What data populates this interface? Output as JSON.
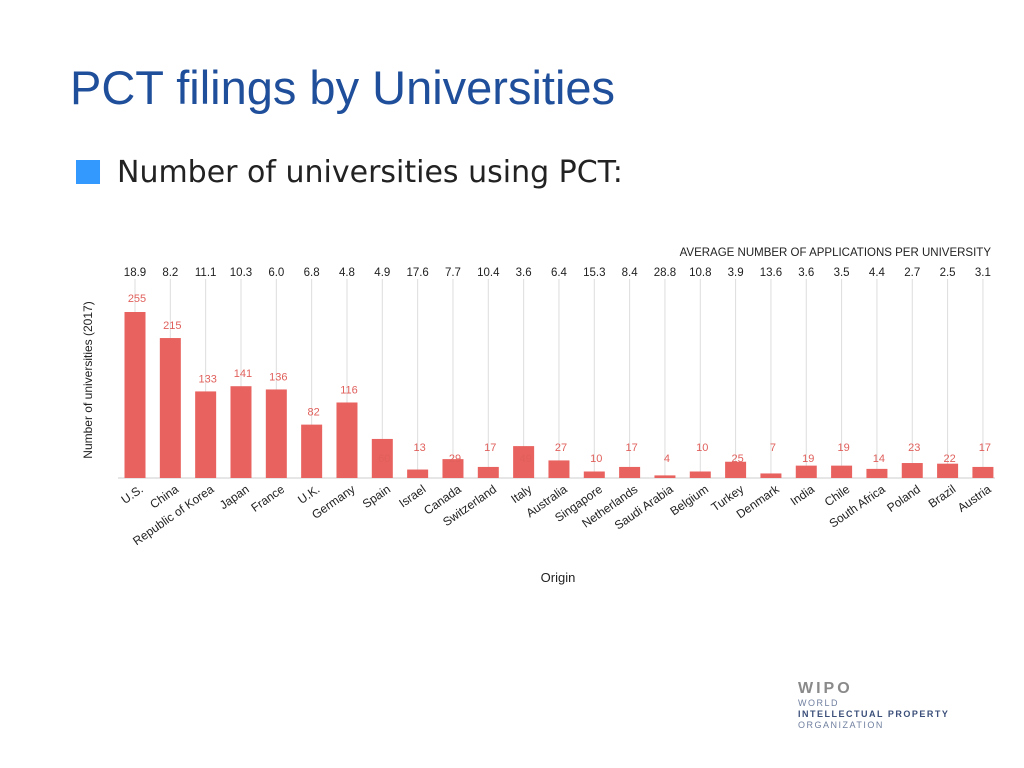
{
  "slide": {
    "title": "PCT filings by Universities",
    "bullet": "Number of universities using PCT:",
    "bullet_color": "#3399ff",
    "title_color": "#1f4e9a"
  },
  "logo": {
    "main": "WIPO",
    "line1": "WORLD",
    "line2": "INTELLECTUAL PROPERTY",
    "line3": "ORGANIZATION"
  },
  "chart_data": {
    "type": "bar",
    "title": "",
    "xlabel": "Origin",
    "ylabel": "Number of universities (2017)",
    "secondary_label": "AVERAGE NUMBER OF APPLICATIONS PER UNIVERSITY",
    "ylim": [
      0,
      255
    ],
    "bar_color": "#e8625f",
    "value_label_color": "#e0605c",
    "categories": [
      "U.S.",
      "China",
      "Republic of Korea",
      "Japan",
      "France",
      "U.K.",
      "Germany",
      "Spain",
      "Israel",
      "Canada",
      "Switzerland",
      "Italy",
      "Australia",
      "Singapore",
      "Netherlands",
      "Saudi Arabia",
      "Belgium",
      "Turkey",
      "Denmark",
      "India",
      "Chile",
      "South Africa",
      "Poland",
      "Brazil",
      "Austria"
    ],
    "values": [
      255,
      215,
      133,
      141,
      136,
      82,
      116,
      60,
      13,
      29,
      17,
      49,
      27,
      10,
      17,
      4,
      10,
      25,
      7,
      19,
      19,
      14,
      23,
      22,
      17
    ],
    "averages": [
      "18.9",
      "8.2",
      "11.1",
      "10.3",
      "6.0",
      "6.8",
      "4.8",
      "4.9",
      "17.6",
      "7.7",
      "10.4",
      "3.6",
      "6.4",
      "15.3",
      "8.4",
      "28.8",
      "10.8",
      "3.9",
      "13.6",
      "3.6",
      "3.5",
      "4.4",
      "2.7",
      "2.5",
      "3.1"
    ]
  }
}
